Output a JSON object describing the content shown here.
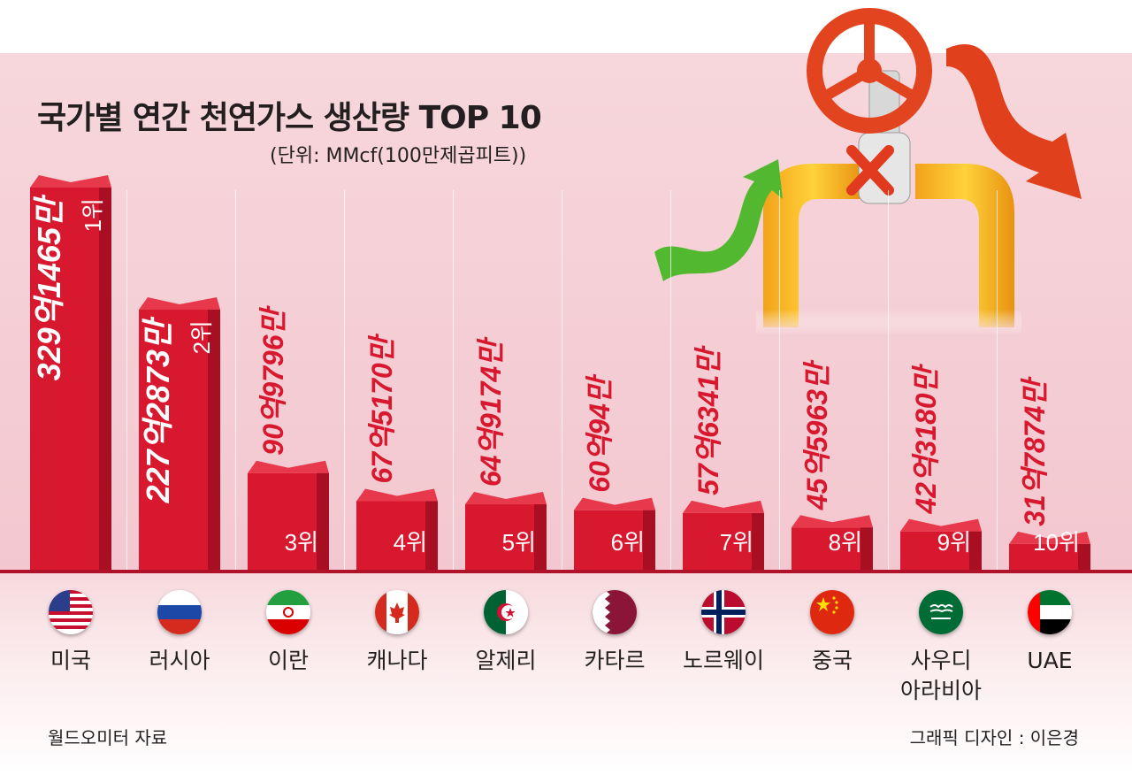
{
  "title": "국가별 연간 천연가스 생산량 TOP 10",
  "unit": "(단위: MMcf(100만제곱피트))",
  "source": "월드오미터 자료",
  "credit": "그래픽 디자인 : 이은경",
  "colors": {
    "bar": "#d8182e",
    "bar_dark": "#a80f22",
    "band": "#f5cdd3"
  },
  "chart_data": {
    "type": "bar",
    "title": "국가별 연간 천연가스 생산량 TOP 10",
    "ylabel": "(단위: MMcf(100만제곱피트))",
    "categories": [
      "미국",
      "러시아",
      "이란",
      "캐나다",
      "알제리",
      "카타르",
      "노르웨이",
      "중국",
      "사우디 아라비아",
      "UAE"
    ],
    "values": [
      32914650000,
      22728730000,
      9097960000,
      6751700000,
      6491740000,
      6000940000,
      5763410000,
      4559630000,
      4231800000,
      3178740000
    ],
    "value_labels": [
      "329억1465만",
      "227억2873만",
      "90억9796만",
      "67억5170만",
      "64억9174만",
      "60억94만",
      "57억6341만",
      "45억5963만",
      "42억3180만",
      "31억7874만"
    ],
    "rank_labels": [
      "1위",
      "2위",
      "3위",
      "4위",
      "5위",
      "6위",
      "7위",
      "8위",
      "9위",
      "10위"
    ],
    "ylim": [
      0,
      32914650000
    ],
    "grid": false,
    "legend": "none"
  },
  "countries": [
    {
      "name": "미국",
      "flag": "usa-flag-icon"
    },
    {
      "name": "러시아",
      "flag": "russia-flag-icon"
    },
    {
      "name": "이란",
      "flag": "iran-flag-icon"
    },
    {
      "name": "캐나다",
      "flag": "canada-flag-icon"
    },
    {
      "name": "알제리",
      "flag": "algeria-flag-icon"
    },
    {
      "name": "카타르",
      "flag": "qatar-flag-icon"
    },
    {
      "name": "노르웨이",
      "flag": "norway-flag-icon"
    },
    {
      "name": "중국",
      "flag": "china-flag-icon"
    },
    {
      "name": "사우디\n아라비아",
      "flag": "saudi-flag-icon"
    },
    {
      "name": "UAE",
      "flag": "uae-flag-icon"
    }
  ]
}
